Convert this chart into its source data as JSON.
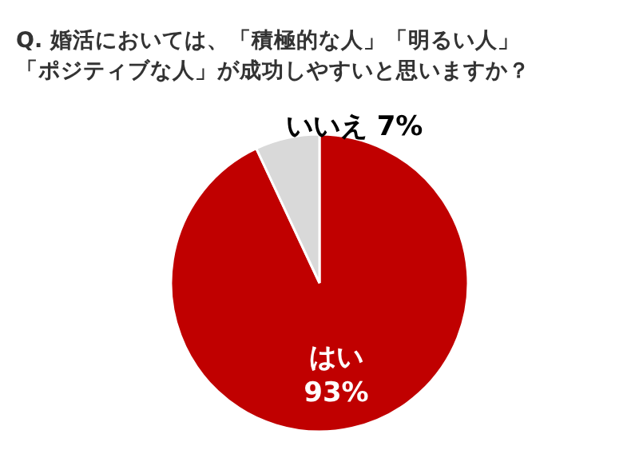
{
  "chart_data": {
    "type": "pie",
    "title": "Q. 婚活においては、「積極的な人」「明るい人」「ポジティブな人」が成功しやすいと思いますか？",
    "categories": [
      "はい",
      "いいえ"
    ],
    "values": [
      93,
      7
    ],
    "colors": [
      "#c00000",
      "#d9d9d9"
    ],
    "value_labels": [
      "93%",
      "7%"
    ]
  }
}
